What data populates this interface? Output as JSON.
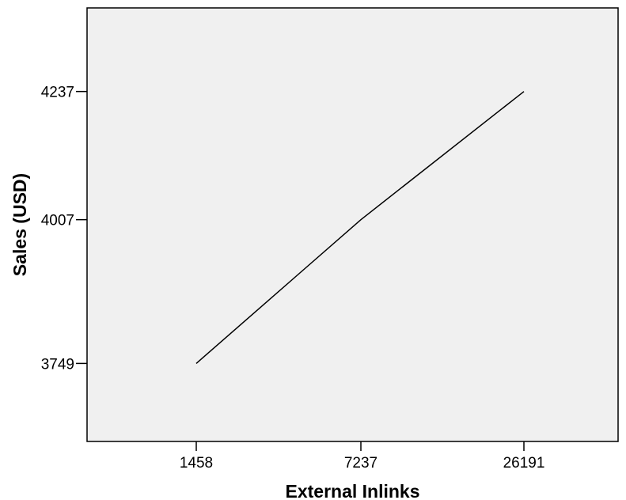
{
  "chart_data": {
    "type": "line",
    "xlabel": "External Inlinks",
    "ylabel": "Sales (USD)",
    "x_scale": "categorical",
    "categories": [
      "1458",
      "7237",
      "26191"
    ],
    "y_ticks": [
      3749,
      4007,
      4237
    ],
    "ylim": [
      3609,
      4387
    ],
    "grid": false,
    "legend": "none",
    "series": [
      {
        "values": [
          3749,
          4007,
          4237
        ],
        "color": "#000000"
      }
    ],
    "plot_background": "#f0f0f0",
    "axis_color": "#000000"
  }
}
